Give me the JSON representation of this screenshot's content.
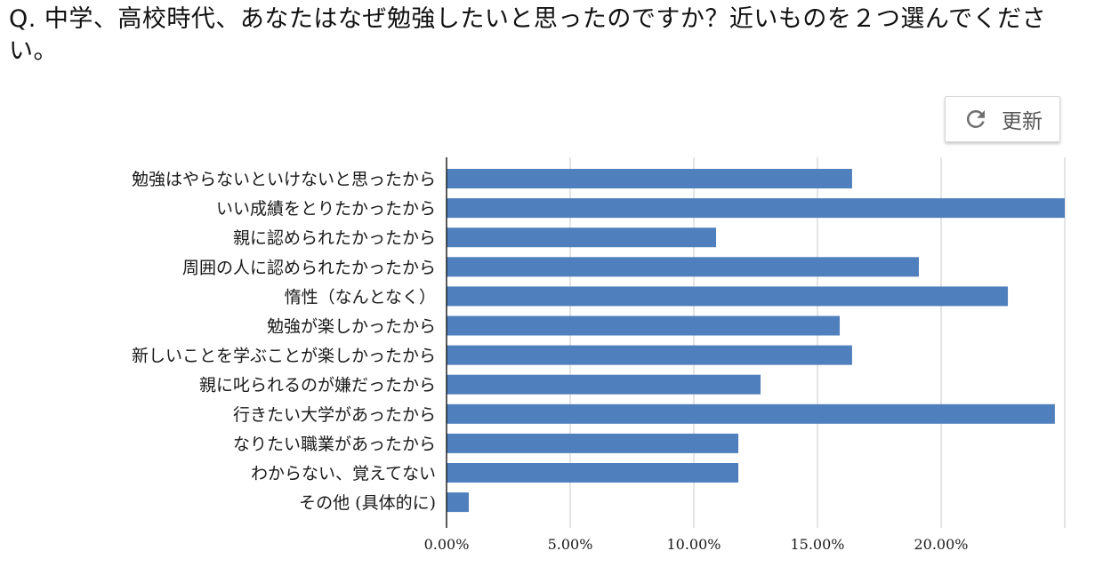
{
  "question": {
    "text": "Q. 中学、高校時代、あなたはなぜ勉強したいと思ったのですか？近いものを２つ選んでください。"
  },
  "toolbar": {
    "refresh_label": "更新",
    "refresh_icon": "refresh-icon"
  },
  "colors": {
    "bar": "#4f7fbc",
    "grid": "#c8c8c8",
    "axis": "#222222"
  },
  "chart_data": {
    "type": "bar",
    "orientation": "horizontal",
    "title": "",
    "xlabel": "",
    "ylabel": "",
    "xlim": [
      0,
      25
    ],
    "grid": true,
    "categories": [
      "勉強はやらないといけないと思ったから",
      "いい成績をとりたかったから",
      "親に認められたかったから",
      "周囲の人に認められたかったから",
      "惰性（なんとなく）",
      "勉強が楽しかったから",
      "新しいことを学ぶことが楽しかったから",
      "親に叱られるのが嫌だったから",
      "行きたい大学があったから",
      "なりたい職業があったから",
      "わからない、覚えてない",
      "その他 (具体的に)"
    ],
    "values": [
      16.4,
      25.0,
      10.9,
      19.1,
      22.7,
      15.9,
      16.4,
      12.7,
      24.6,
      11.8,
      11.8,
      0.9
    ],
    "unit": "%",
    "ticks": [
      0,
      5,
      10,
      15,
      20
    ],
    "tick_labels": [
      "0.00%",
      "5.00%",
      "10.00%",
      "15.00%",
      "20.00%"
    ]
  }
}
